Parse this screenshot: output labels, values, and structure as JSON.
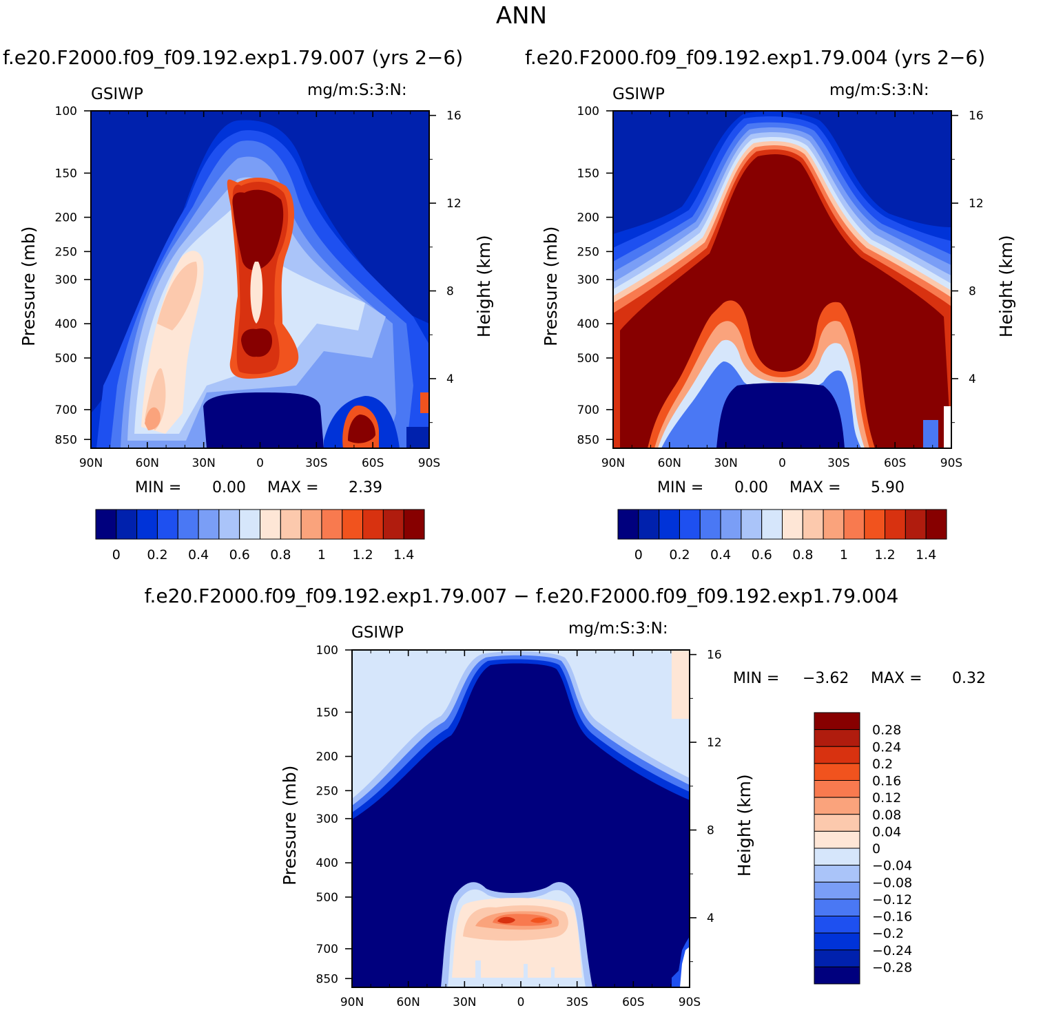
{
  "title": "ANN",
  "case1_title": "f.e20.F2000.f09_f09.192.exp1.79.007 (yrs 2−6)",
  "case2_title": "f.e20.F2000.f09_f09.192.exp1.79.004 (yrs 2−6)",
  "diff_title": "f.e20.F2000.f09_f09.192.exp1.79.007 − f.e20.F2000.f09_f09.192.exp1.79.004",
  "palette_abs": [
    "#00007e",
    "#0021ad",
    "#0033d8",
    "#1e50f0",
    "#4a78f4",
    "#7a9ef6",
    "#aac4f9",
    "#d6e6fb",
    "#fee6d6",
    "#fcc9ad",
    "#faa37c",
    "#f87a4f",
    "#f1531e",
    "#d83210",
    "#b01c0e",
    "#870000"
  ],
  "palette_diff": [
    "#00007e",
    "#0021ad",
    "#0033d8",
    "#1e50f0",
    "#4a78f4",
    "#7a9ef6",
    "#aac4f9",
    "#d6e6fb",
    "#fee6d6",
    "#fcc9ad",
    "#faa37c",
    "#f87a4f",
    "#f1531e",
    "#d83210",
    "#b01c0e",
    "#870000"
  ],
  "chart_data": [
    {
      "type": "heatmap",
      "panel": "case1",
      "variable": "GSIWP",
      "units": "mg/m:S:3:N:",
      "xlabel": "",
      "ylabel": "Pressure (mb)",
      "ylabel_right": "Height (km)",
      "x_ticks": [
        "90N",
        "60N",
        "30N",
        "0",
        "30S",
        "60S",
        "90S"
      ],
      "y_ticks": [
        "100",
        "150",
        "200",
        "250",
        "300",
        "400",
        "500",
        "700",
        "850"
      ],
      "y_right_ticks": [
        "16",
        "12",
        "8",
        "4"
      ],
      "min_label": "MIN =",
      "min_value": "0.00",
      "max_label": "MAX =",
      "max_value": "2.39",
      "colorbar_labels": [
        "0",
        "0.2",
        "0.4",
        "0.6",
        "0.8",
        "1",
        "1.2",
        "1.4"
      ]
    },
    {
      "type": "heatmap",
      "panel": "case2",
      "variable": "GSIWP",
      "units": "mg/m:S:3:N:",
      "xlabel": "",
      "ylabel": "Pressure (mb)",
      "ylabel_right": "Height (km)",
      "x_ticks": [
        "90N",
        "60N",
        "30N",
        "0",
        "30S",
        "60S",
        "90S"
      ],
      "y_ticks": [
        "100",
        "150",
        "200",
        "250",
        "300",
        "400",
        "500",
        "700",
        "850"
      ],
      "y_right_ticks": [
        "16",
        "12",
        "8",
        "4"
      ],
      "min_label": "MIN =",
      "min_value": "0.00",
      "max_label": "MAX =",
      "max_value": "5.90",
      "colorbar_labels": [
        "0",
        "0.2",
        "0.4",
        "0.6",
        "0.8",
        "1",
        "1.2",
        "1.4"
      ]
    },
    {
      "type": "heatmap",
      "panel": "diff",
      "variable": "GSIWP",
      "units": "mg/m:S:3:N:",
      "xlabel": "",
      "ylabel": "Pressure (mb)",
      "ylabel_right": "Height (km)",
      "x_ticks": [
        "90N",
        "60N",
        "30N",
        "0",
        "30S",
        "60S",
        "90S"
      ],
      "y_ticks": [
        "100",
        "150",
        "200",
        "250",
        "300",
        "400",
        "500",
        "700",
        "850"
      ],
      "y_right_ticks": [
        "16",
        "12",
        "8",
        "4"
      ],
      "min_label": "MIN =",
      "min_value": "−3.62",
      "max_label": "MAX =",
      "max_value": "0.32",
      "colorbar_labels": [
        "0.28",
        "0.24",
        "0.2",
        "0.16",
        "0.12",
        "0.08",
        "0.04",
        "0",
        "−0.04",
        "−0.08",
        "−0.12",
        "−0.16",
        "−0.2",
        "−0.24",
        "−0.28"
      ]
    }
  ]
}
